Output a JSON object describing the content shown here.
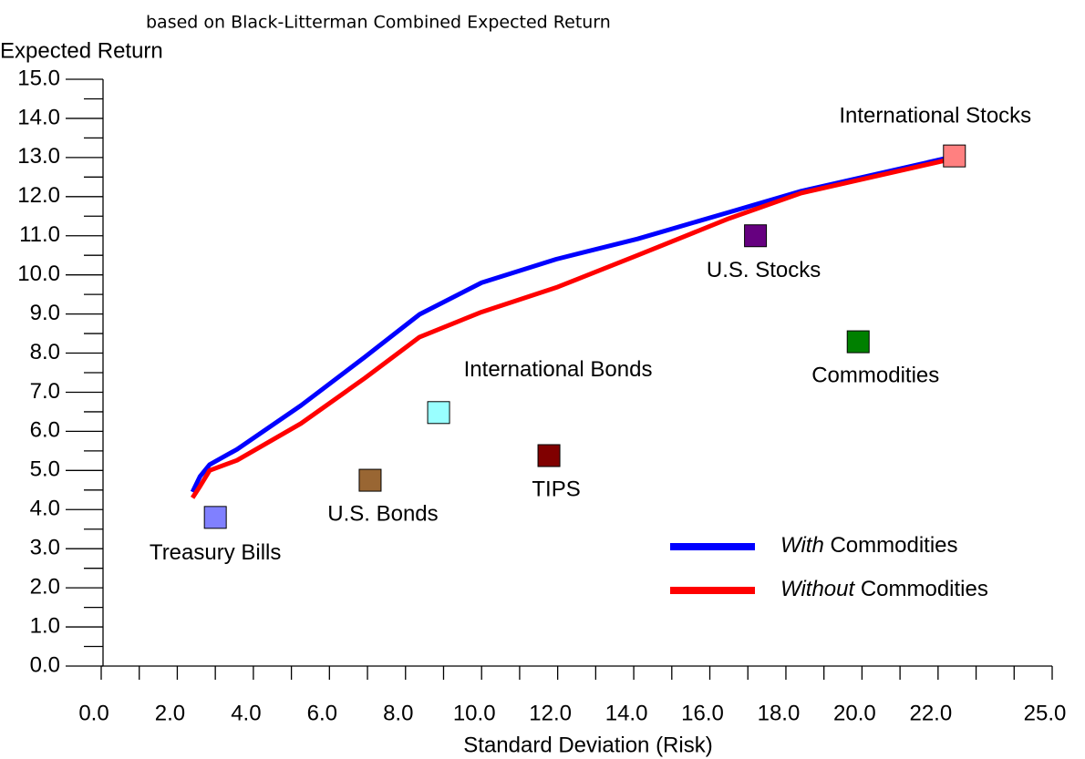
{
  "chart_data": {
    "type": "line",
    "title": "based on Black-Litterman Combined Expected Return",
    "y_label": "Expected Return",
    "x_label": "Standard Deviation (Risk)",
    "xlim": [
      0,
      25
    ],
    "xticks": [
      {
        "value": 0,
        "label": "0.0"
      },
      {
        "value": 2,
        "label": "2.0"
      },
      {
        "value": 4,
        "label": "4.0"
      },
      {
        "value": 6,
        "label": "6.0"
      },
      {
        "value": 8,
        "label": "8.0"
      },
      {
        "value": 10,
        "label": "10.0"
      },
      {
        "value": 12,
        "label": "12.0"
      },
      {
        "value": 14,
        "label": "14.0"
      },
      {
        "value": 16,
        "label": "16.0"
      },
      {
        "value": 18,
        "label": "18.0"
      },
      {
        "value": 20,
        "label": "20.0"
      },
      {
        "value": 22,
        "label": "22.0"
      },
      {
        "value": 25,
        "label": "25.0"
      }
    ],
    "xminorticks": [
      1,
      3,
      5,
      7,
      9,
      11,
      13,
      15,
      17,
      19,
      21,
      23,
      24
    ],
    "ylim": [
      0,
      15
    ],
    "yticks": [
      {
        "value": 0,
        "label": "0.0"
      },
      {
        "value": 1,
        "label": "1.0"
      },
      {
        "value": 2,
        "label": "2.0"
      },
      {
        "value": 3,
        "label": "3.0"
      },
      {
        "value": 4,
        "label": "4.0"
      },
      {
        "value": 5,
        "label": "5.0"
      },
      {
        "value": 6,
        "label": "6.0"
      },
      {
        "value": 7,
        "label": "7.0"
      },
      {
        "value": 8,
        "label": "8.0"
      },
      {
        "value": 9,
        "label": "9.0"
      },
      {
        "value": 10,
        "label": "10.0"
      },
      {
        "value": 11,
        "label": "11.0"
      },
      {
        "value": 12,
        "label": "12.0"
      },
      {
        "value": 13,
        "label": "13.0"
      },
      {
        "value": 14,
        "label": "14.0"
      },
      {
        "value": 15,
        "label": "15.0"
      }
    ],
    "yminorticks": [
      0.5,
      1.5,
      2.5,
      3.5,
      4.5,
      5.5,
      6.5,
      7.5,
      8.5,
      9.5,
      10.5,
      11.5,
      12.5,
      13.5,
      14.5
    ],
    "series": [
      {
        "name": "With Commodities",
        "color": "#0000ff",
        "x": [
          2.4,
          2.6,
          2.85,
          3.57,
          5.25,
          6.93,
          8.37,
          10.0,
          11.96,
          14.1,
          16.5,
          18.4,
          22.3
        ],
        "values": [
          4.45,
          4.85,
          5.15,
          5.54,
          6.66,
          7.9,
          8.99,
          9.8,
          10.4,
          10.92,
          11.6,
          12.14,
          13.0
        ]
      },
      {
        "name": "Without Commodities",
        "color": "#ff0000",
        "x": [
          2.4,
          2.6,
          2.85,
          3.57,
          5.25,
          6.93,
          8.37,
          10.0,
          12.0,
          14.1,
          16.5,
          18.4,
          22.3
        ],
        "values": [
          4.3,
          4.6,
          5.0,
          5.26,
          6.2,
          7.36,
          8.41,
          9.05,
          9.69,
          10.5,
          11.44,
          12.09,
          12.95
        ]
      }
    ],
    "points": [
      {
        "name": "Treasury Bills",
        "color": "#8080ff",
        "x": 3.0,
        "y": 3.8
      },
      {
        "name": "U.S. Bonds",
        "color": "#996633",
        "x": 7.07,
        "y": 4.75
      },
      {
        "name": "International Bonds",
        "color": "#99ffff",
        "x": 8.87,
        "y": 6.48
      },
      {
        "name": "TIPS",
        "color": "#800000",
        "x": 11.77,
        "y": 5.38
      },
      {
        "name": "U.S. Stocks",
        "color": "#660080",
        "x": 17.2,
        "y": 11.0
      },
      {
        "name": "Commodities",
        "color": "#008000",
        "x": 19.9,
        "y": 8.29
      },
      {
        "name": "International Stocks",
        "color": "#ff8080",
        "x": 22.43,
        "y": 13.04
      }
    ],
    "legend": "lower right"
  }
}
